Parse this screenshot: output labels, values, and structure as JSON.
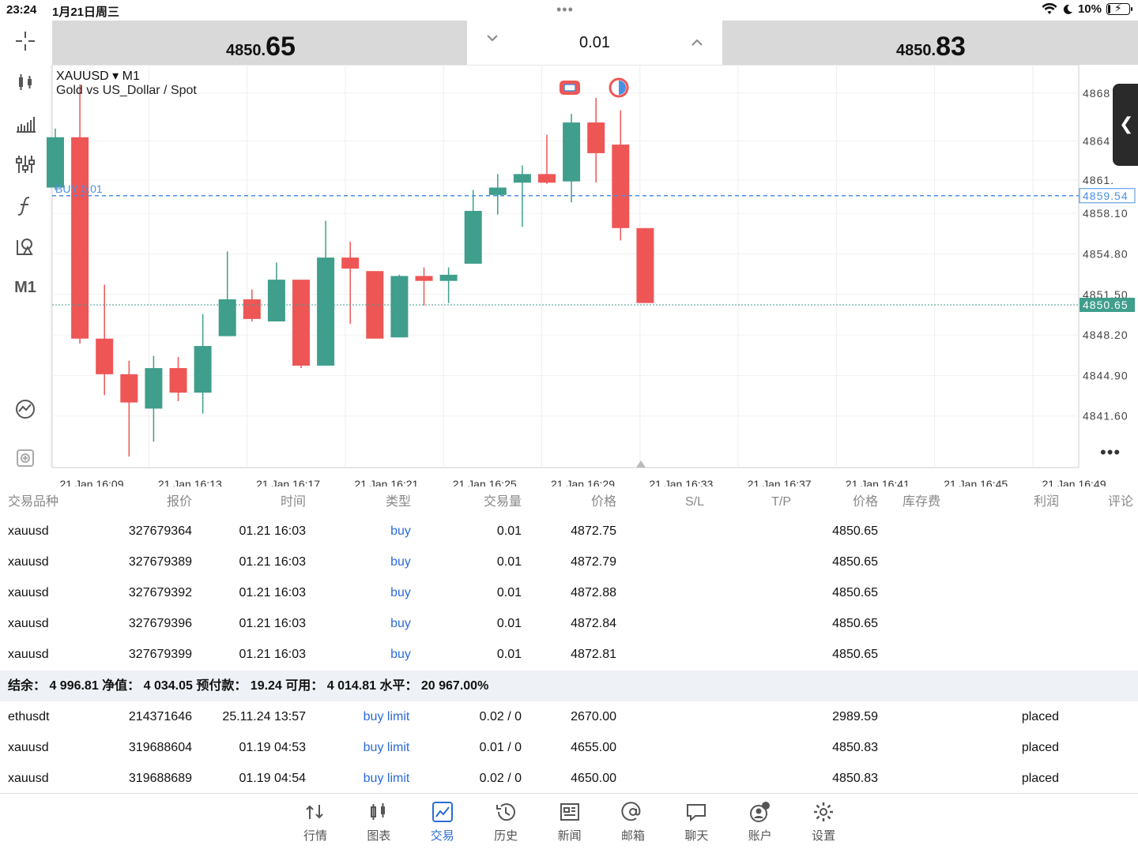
{
  "status_bar": {
    "time": "23:24",
    "date": "1月21日周三",
    "battery": "10%",
    "battery_level": 0.1
  },
  "quote": {
    "bid_small": "4850.",
    "bid_big": "65",
    "ask_small": "4850.",
    "ask_big": "83",
    "lot": "0.01"
  },
  "toolbar": {
    "timeframe": "M1"
  },
  "chart": {
    "symbol": "XAUUSD",
    "timeframe": "M1",
    "description": "Gold vs US_Dollar / Spot",
    "order_line_label": "BUY 0.01",
    "colors": {
      "bull": "#3f9e8c",
      "bear": "#ee5656",
      "order_line": "#4a90e2",
      "price_line": "#3f9e8c"
    }
  },
  "chart_data": {
    "type": "candlestick",
    "x_labels": [
      "21 Jan 16:09",
      "21 Jan 16:13",
      "21 Jan 16:17",
      "21 Jan 16:21",
      "21 Jan 16:25",
      "21 Jan 16:29",
      "21 Jan 16:33",
      "21 Jan 16:37",
      "21 Jan 16:41",
      "21 Jan 16:45",
      "21 Jan 16:49"
    ],
    "y_ticks": [
      "4868",
      "4864",
      "4861.",
      "4858.10",
      "4854.80",
      "4851.50",
      "4848.20",
      "4844.90",
      "4841.60"
    ],
    "y_range": [
      4837.4,
      4870.2
    ],
    "order_line": {
      "label": "4859.54",
      "value": 4859.54
    },
    "price_line": {
      "label": "4850.65",
      "value": 4850.65
    },
    "candles": [
      {
        "o": 4860.2,
        "h": 4865.0,
        "l": 4860.0,
        "c": 4864.3
      },
      {
        "o": 4864.3,
        "h": 4868.6,
        "l": 4847.5,
        "c": 4847.9
      },
      {
        "o": 4847.9,
        "h": 4852.3,
        "l": 4843.3,
        "c": 4845.0
      },
      {
        "o": 4845.0,
        "h": 4846.1,
        "l": 4838.3,
        "c": 4842.7
      },
      {
        "o": 4842.2,
        "h": 4846.5,
        "l": 4839.5,
        "c": 4845.5
      },
      {
        "o": 4845.5,
        "h": 4846.4,
        "l": 4842.8,
        "c": 4843.5
      },
      {
        "o": 4843.5,
        "h": 4849.9,
        "l": 4841.8,
        "c": 4847.3
      },
      {
        "o": 4848.1,
        "h": 4855.0,
        "l": 4848.1,
        "c": 4851.1
      },
      {
        "o": 4851.1,
        "h": 4851.9,
        "l": 4849.3,
        "c": 4849.5
      },
      {
        "o": 4849.3,
        "h": 4854.1,
        "l": 4849.3,
        "c": 4852.7
      },
      {
        "o": 4852.7,
        "h": 4852.7,
        "l": 4845.5,
        "c": 4845.7
      },
      {
        "o": 4845.7,
        "h": 4857.5,
        "l": 4845.7,
        "c": 4854.5
      },
      {
        "o": 4854.5,
        "h": 4855.8,
        "l": 4849.1,
        "c": 4853.6
      },
      {
        "o": 4853.4,
        "h": 4853.4,
        "l": 4847.9,
        "c": 4847.9
      },
      {
        "o": 4848.0,
        "h": 4853.1,
        "l": 4848.0,
        "c": 4853.0
      },
      {
        "o": 4853.0,
        "h": 4853.7,
        "l": 4850.6,
        "c": 4852.6
      },
      {
        "o": 4852.6,
        "h": 4853.7,
        "l": 4850.8,
        "c": 4853.1
      },
      {
        "o": 4854.0,
        "h": 4860.0,
        "l": 4854.0,
        "c": 4858.3
      },
      {
        "o": 4859.6,
        "h": 4861.3,
        "l": 4858.0,
        "c": 4860.2
      },
      {
        "o": 4860.6,
        "h": 4862.0,
        "l": 4857.0,
        "c": 4861.3
      },
      {
        "o": 4861.3,
        "h": 4864.5,
        "l": 4860.5,
        "c": 4860.6
      },
      {
        "o": 4860.7,
        "h": 4866.2,
        "l": 4859.0,
        "c": 4865.5
      },
      {
        "o": 4865.5,
        "h": 4867.5,
        "l": 4860.6,
        "c": 4863.0
      },
      {
        "o": 4863.7,
        "h": 4866.5,
        "l": 4855.9,
        "c": 4856.9
      },
      {
        "o": 4856.9,
        "h": 4856.9,
        "l": 4850.8,
        "c": 4850.8
      }
    ]
  },
  "trade": {
    "headers": [
      "交易品种",
      "报价",
      "时间",
      "类型",
      "交易量",
      "价格",
      "S/L",
      "T/P",
      "价格",
      "库存费",
      "利润",
      "评论"
    ],
    "positions": [
      {
        "symbol": "xauusd",
        "ticket": "327679364",
        "time": "01.21 16:03",
        "type": "buy",
        "volume": "0.01",
        "price": "4872.75",
        "current": "4850.65"
      },
      {
        "symbol": "xauusd",
        "ticket": "327679389",
        "time": "01.21 16:03",
        "type": "buy",
        "volume": "0.01",
        "price": "4872.79",
        "current": "4850.65"
      },
      {
        "symbol": "xauusd",
        "ticket": "327679392",
        "time": "01.21 16:03",
        "type": "buy",
        "volume": "0.01",
        "price": "4872.88",
        "current": "4850.65"
      },
      {
        "symbol": "xauusd",
        "ticket": "327679396",
        "time": "01.21 16:03",
        "type": "buy",
        "volume": "0.01",
        "price": "4872.84",
        "current": "4850.65"
      },
      {
        "symbol": "xauusd",
        "ticket": "327679399",
        "time": "01.21 16:03",
        "type": "buy",
        "volume": "0.01",
        "price": "4872.81",
        "current": "4850.65"
      }
    ],
    "summary": "结余： 4 996.81 净值： 4 034.05 预付款： 19.24 可用： 4 014.81 水平： 20 967.00%",
    "orders": [
      {
        "symbol": "ethusdt",
        "ticket": "214371646",
        "time": "25.11.24 13:57",
        "type": "buy limit",
        "volume": "0.02 / 0",
        "price": "2670.00",
        "current": "2989.59",
        "comment": "placed"
      },
      {
        "symbol": "xauusd",
        "ticket": "319688604",
        "time": "01.19 04:53",
        "type": "buy limit",
        "volume": "0.01 / 0",
        "price": "4655.00",
        "current": "4850.83",
        "comment": "placed"
      },
      {
        "symbol": "xauusd",
        "ticket": "319688689",
        "time": "01.19 04:54",
        "type": "buy limit",
        "volume": "0.02 / 0",
        "price": "4650.00",
        "current": "4850.83",
        "comment": "placed"
      }
    ]
  },
  "nav": {
    "items": [
      {
        "label": "行情",
        "icon": "quotes-icon"
      },
      {
        "label": "图表",
        "icon": "chart-icon"
      },
      {
        "label": "交易",
        "icon": "trade-icon"
      },
      {
        "label": "历史",
        "icon": "history-icon"
      },
      {
        "label": "新闻",
        "icon": "news-icon"
      },
      {
        "label": "邮箱",
        "icon": "mail-icon"
      },
      {
        "label": "聊天",
        "icon": "chat-icon"
      },
      {
        "label": "账户",
        "icon": "account-icon"
      },
      {
        "label": "设置",
        "icon": "settings-icon"
      }
    ],
    "active": 2,
    "active_color": "#2b6bd8"
  }
}
